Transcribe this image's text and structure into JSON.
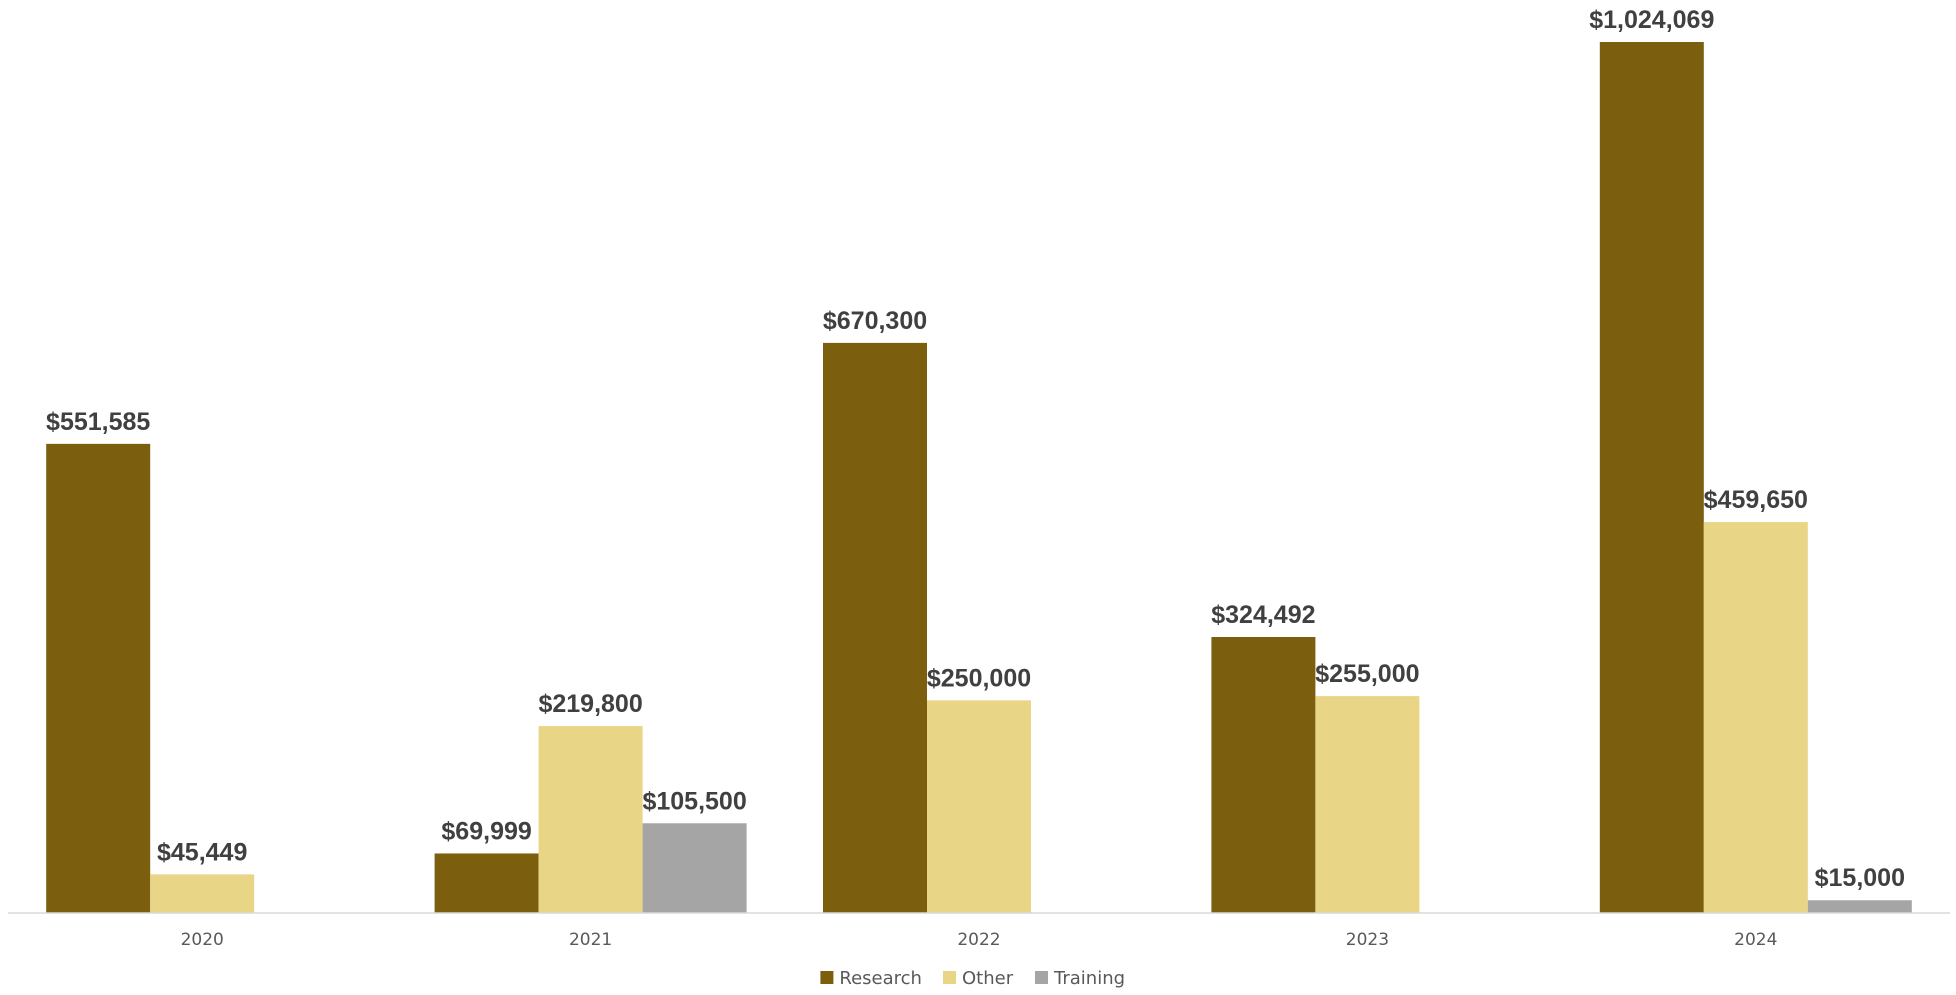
{
  "chart_data": {
    "type": "bar",
    "title": "",
    "xlabel": "",
    "ylabel": "",
    "categories": [
      "2020",
      "2021",
      "2022",
      "2023",
      "2024"
    ],
    "series": [
      {
        "name": "Research",
        "color": "#7B5F0E",
        "values": [
          551585,
          69999,
          670300,
          324492,
          1024069
        ],
        "labels": [
          "$551,585",
          "$69,999",
          "$670,300",
          "$324,492",
          "$1,024,069"
        ]
      },
      {
        "name": "Other",
        "color": "#E8D586",
        "values": [
          45449,
          219800,
          250000,
          255000,
          459650
        ],
        "labels": [
          "$45,449",
          "$219,800",
          "$250,000",
          "$255,000",
          "$459,650"
        ]
      },
      {
        "name": "Training",
        "color": "#A5A5A5",
        "values": [
          null,
          105500,
          null,
          null,
          15000
        ],
        "labels": [
          null,
          "$105,500",
          null,
          null,
          "$15,000"
        ]
      }
    ],
    "ylim": [
      0,
      1024069
    ],
    "grid": false,
    "legend_position": "bottom"
  }
}
